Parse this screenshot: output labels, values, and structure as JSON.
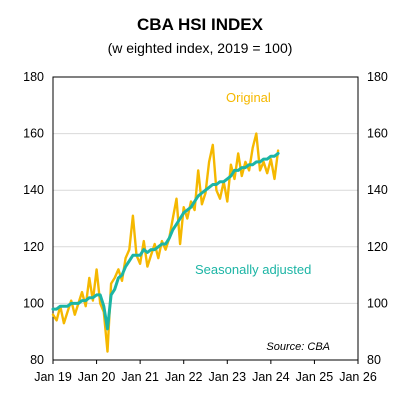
{
  "chart_data": {
    "type": "line",
    "title": "CBA HSI INDEX",
    "subtitle": "(w eighted index, 2019 = 100)",
    "ylim": [
      80,
      180
    ],
    "yticks": [
      80,
      100,
      120,
      140,
      160,
      180
    ],
    "y2ticks": [
      80,
      100,
      120,
      140,
      160,
      180
    ],
    "xlim": [
      "2019-01",
      "2026-01"
    ],
    "xticks": [
      "Jan 19",
      "Jan 20",
      "Jan 21",
      "Jan 22",
      "Jan 23",
      "Jan 24",
      "Jan 25",
      "Jan 26"
    ],
    "grid": "horizontal",
    "annotation": "Source: CBA",
    "series": [
      {
        "name": "Original",
        "color": "#F5B800",
        "points": [
          [
            "2019-01",
            96
          ],
          [
            "2019-02",
            94
          ],
          [
            "2019-03",
            99
          ],
          [
            "2019-04",
            93
          ],
          [
            "2019-05",
            97
          ],
          [
            "2019-06",
            101
          ],
          [
            "2019-07",
            96
          ],
          [
            "2019-08",
            100
          ],
          [
            "2019-09",
            104
          ],
          [
            "2019-10",
            99
          ],
          [
            "2019-11",
            109
          ],
          [
            "2019-12",
            101
          ],
          [
            "2020-01",
            112
          ],
          [
            "2020-02",
            100
          ],
          [
            "2020-03",
            97
          ],
          [
            "2020-04",
            83
          ],
          [
            "2020-05",
            107
          ],
          [
            "2020-06",
            109
          ],
          [
            "2020-07",
            112
          ],
          [
            "2020-08",
            108
          ],
          [
            "2020-09",
            116
          ],
          [
            "2020-10",
            119
          ],
          [
            "2020-11",
            131
          ],
          [
            "2020-12",
            117
          ],
          [
            "2021-01",
            114
          ],
          [
            "2021-02",
            122
          ],
          [
            "2021-03",
            113
          ],
          [
            "2021-04",
            117
          ],
          [
            "2021-05",
            121
          ],
          [
            "2021-06",
            116
          ],
          [
            "2021-07",
            122
          ],
          [
            "2021-08",
            119
          ],
          [
            "2021-09",
            123
          ],
          [
            "2021-10",
            130
          ],
          [
            "2021-11",
            137
          ],
          [
            "2021-12",
            121
          ],
          [
            "2022-01",
            134
          ],
          [
            "2022-02",
            130
          ],
          [
            "2022-03",
            136
          ],
          [
            "2022-04",
            133
          ],
          [
            "2022-05",
            147
          ],
          [
            "2022-06",
            135
          ],
          [
            "2022-07",
            139
          ],
          [
            "2022-08",
            150
          ],
          [
            "2022-09",
            156
          ],
          [
            "2022-10",
            140
          ],
          [
            "2022-11",
            137
          ],
          [
            "2022-12",
            143
          ],
          [
            "2023-01",
            136
          ],
          [
            "2023-02",
            149
          ],
          [
            "2023-03",
            144
          ],
          [
            "2023-04",
            153
          ],
          [
            "2023-05",
            145
          ],
          [
            "2023-06",
            150
          ],
          [
            "2023-07",
            147
          ],
          [
            "2023-08",
            155
          ],
          [
            "2023-09",
            160
          ],
          [
            "2023-10",
            147
          ],
          [
            "2023-11",
            150
          ],
          [
            "2023-12",
            146
          ],
          [
            "2024-01",
            151
          ],
          [
            "2024-02",
            144
          ],
          [
            "2024-03",
            154
          ]
        ]
      },
      {
        "name": "Seasonally adjusted",
        "color": "#1CB5A5",
        "points": [
          [
            "2019-01",
            98
          ],
          [
            "2019-02",
            98
          ],
          [
            "2019-03",
            99
          ],
          [
            "2019-04",
            99
          ],
          [
            "2019-05",
            99
          ],
          [
            "2019-06",
            100
          ],
          [
            "2019-07",
            100
          ],
          [
            "2019-08",
            100
          ],
          [
            "2019-09",
            101
          ],
          [
            "2019-10",
            101
          ],
          [
            "2019-11",
            102
          ],
          [
            "2019-12",
            102
          ],
          [
            "2020-01",
            103
          ],
          [
            "2020-02",
            103
          ],
          [
            "2020-03",
            99
          ],
          [
            "2020-04",
            91
          ],
          [
            "2020-05",
            103
          ],
          [
            "2020-06",
            105
          ],
          [
            "2020-07",
            109
          ],
          [
            "2020-08",
            110
          ],
          [
            "2020-09",
            113
          ],
          [
            "2020-10",
            115
          ],
          [
            "2020-11",
            117
          ],
          [
            "2020-12",
            117
          ],
          [
            "2021-01",
            117
          ],
          [
            "2021-02",
            119
          ],
          [
            "2021-03",
            118
          ],
          [
            "2021-04",
            119
          ],
          [
            "2021-05",
            119
          ],
          [
            "2021-06",
            120
          ],
          [
            "2021-07",
            121
          ],
          [
            "2021-08",
            121
          ],
          [
            "2021-09",
            123
          ],
          [
            "2021-10",
            126
          ],
          [
            "2021-11",
            128
          ],
          [
            "2021-12",
            130
          ],
          [
            "2022-01",
            132
          ],
          [
            "2022-02",
            133
          ],
          [
            "2022-03",
            134
          ],
          [
            "2022-04",
            136
          ],
          [
            "2022-05",
            138
          ],
          [
            "2022-06",
            139
          ],
          [
            "2022-07",
            140
          ],
          [
            "2022-08",
            141
          ],
          [
            "2022-09",
            142
          ],
          [
            "2022-10",
            142
          ],
          [
            "2022-11",
            143
          ],
          [
            "2022-12",
            143
          ],
          [
            "2023-01",
            144
          ],
          [
            "2023-02",
            145
          ],
          [
            "2023-03",
            147
          ],
          [
            "2023-04",
            147
          ],
          [
            "2023-05",
            148
          ],
          [
            "2023-06",
            148
          ],
          [
            "2023-07",
            149
          ],
          [
            "2023-08",
            149
          ],
          [
            "2023-09",
            150
          ],
          [
            "2023-10",
            150
          ],
          [
            "2023-11",
            151
          ],
          [
            "2023-12",
            151
          ],
          [
            "2024-01",
            152
          ],
          [
            "2024-02",
            152
          ],
          [
            "2024-03",
            153
          ]
        ]
      }
    ]
  }
}
